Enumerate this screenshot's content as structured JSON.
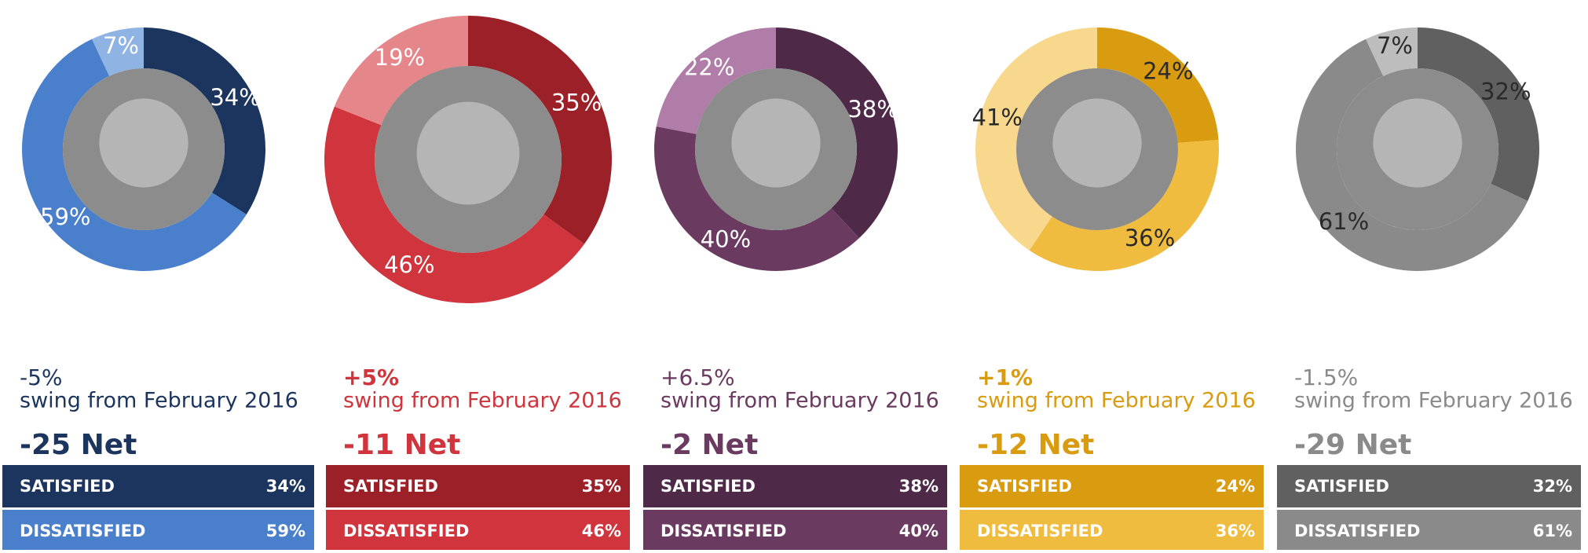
{
  "chart_data": [
    {
      "type": "pie",
      "categories": [
        "SATISFIED",
        "DISSATISFIED",
        null
      ],
      "values": [
        34,
        59,
        7
      ],
      "value_labels": [
        "34%",
        "59%",
        "7%"
      ],
      "colors": [
        "#1c355e",
        "#4a7fcb",
        "#8fb3e3"
      ],
      "swing": "-5%",
      "swing_label": "swing from February 2016",
      "net": "-25 Net"
    },
    {
      "type": "pie",
      "categories": [
        "SATISFIED",
        "DISSATISFIED",
        null
      ],
      "values": [
        35,
        46,
        19
      ],
      "value_labels": [
        "35%",
        "46%",
        "19%"
      ],
      "colors": [
        "#9b2028",
        "#d0343c",
        "#e4868a"
      ],
      "swing": "+5%",
      "swing_label": "swing from February 2016",
      "net": "-11 Net"
    },
    {
      "type": "pie",
      "categories": [
        "SATISFIED",
        "DISSATISFIED",
        null
      ],
      "values": [
        38,
        40,
        22
      ],
      "value_labels": [
        "38%",
        "40%",
        "22%"
      ],
      "colors": [
        "#4e2a48",
        "#6b3a60",
        "#b07ca8"
      ],
      "swing": "+6.5%",
      "swing_label": "swing from February 2016",
      "net": "-2 Net"
    },
    {
      "type": "pie",
      "categories": [
        "SATISFIED",
        "DISSATISFIED",
        null
      ],
      "values": [
        24,
        36,
        41
      ],
      "value_labels": [
        "24%",
        "36%",
        "41%"
      ],
      "colors": [
        "#d99b10",
        "#f0bc40",
        "#f7d88c"
      ],
      "swing": "+1%",
      "swing_label": "swing from February 2016",
      "net": "-12 Net"
    },
    {
      "type": "pie",
      "categories": [
        "SATISFIED",
        "DISSATISFIED",
        null
      ],
      "values": [
        32,
        61,
        7
      ],
      "value_labels": [
        "32%",
        "61%",
        "7%"
      ],
      "colors": [
        "#606060",
        "#8a8a8a",
        "#bdbdbd"
      ],
      "swing": "-1.5%",
      "swing_label": "swing from February 2016",
      "net": "-29 Net"
    }
  ]
}
